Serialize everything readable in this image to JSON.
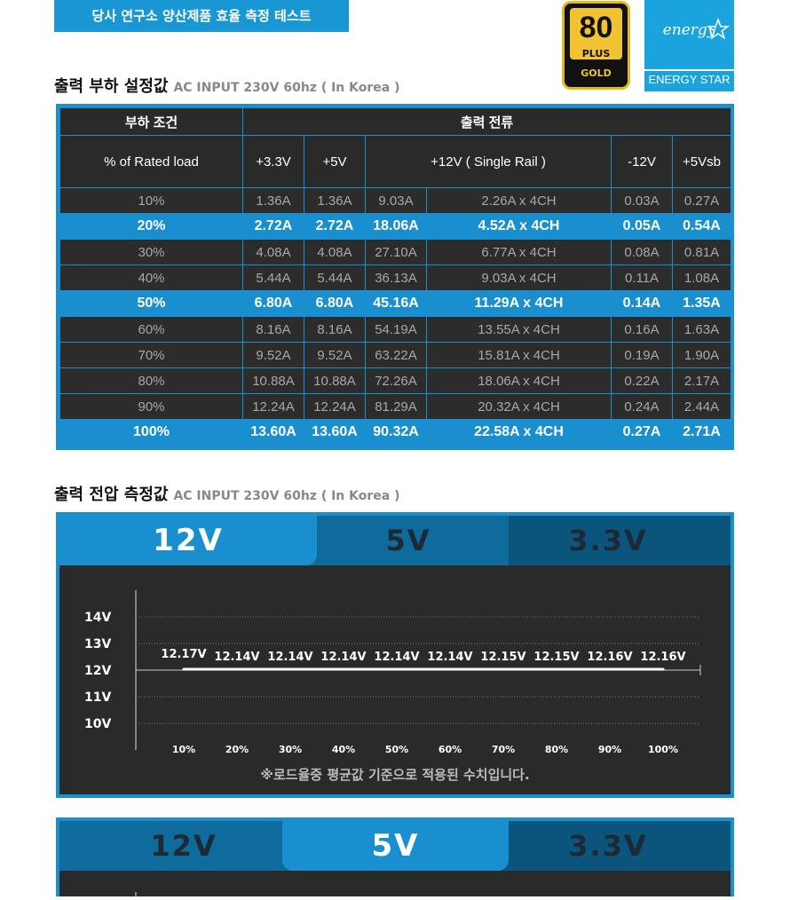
{
  "header": {
    "banner": "당사 연구소 양산제품 효율 측정 테스트",
    "logo_80plus": {
      "number": "80",
      "plus": "PLUS",
      "grade": "GOLD"
    },
    "logo_energy_star": {
      "script": "energy",
      "label": "ENERGY STAR"
    }
  },
  "load_section": {
    "title": "출력 부하 설정값",
    "subtitle": "AC INPUT 230V 60hz ( In Korea )",
    "group_left": "부하 조건",
    "group_right": "출력 전류",
    "columns": [
      "% of  Rated load",
      "+3.3V",
      "+5V",
      "+12V ( Single Rail )",
      "-12V",
      "+5Vsb"
    ],
    "rows": [
      {
        "load": "10%",
        "v33": "1.36A",
        "v5": "1.36A",
        "v12a": "9.03A",
        "v12b": "2.26A x 4CH",
        "vn12": "0.03A",
        "vsb": "0.27A",
        "highlight": false
      },
      {
        "load": "20%",
        "v33": "2.72A",
        "v5": "2.72A",
        "v12a": "18.06A",
        "v12b": "4.52A x 4CH",
        "vn12": "0.05A",
        "vsb": "0.54A",
        "highlight": true
      },
      {
        "load": "30%",
        "v33": "4.08A",
        "v5": "4.08A",
        "v12a": "27.10A",
        "v12b": "6.77A x 4CH",
        "vn12": "0.08A",
        "vsb": "0.81A",
        "highlight": false
      },
      {
        "load": "40%",
        "v33": "5.44A",
        "v5": "5.44A",
        "v12a": "36.13A",
        "v12b": "9.03A x 4CH",
        "vn12": "0.11A",
        "vsb": "1.08A",
        "highlight": false
      },
      {
        "load": "50%",
        "v33": "6.80A",
        "v5": "6.80A",
        "v12a": "45.16A",
        "v12b": "11.29A x 4CH",
        "vn12": "0.14A",
        "vsb": "1.35A",
        "highlight": true
      },
      {
        "load": "60%",
        "v33": "8.16A",
        "v5": "8.16A",
        "v12a": "54.19A",
        "v12b": "13.55A x 4CH",
        "vn12": "0.16A",
        "vsb": "1.63A",
        "highlight": false
      },
      {
        "load": "70%",
        "v33": "9.52A",
        "v5": "9.52A",
        "v12a": "63.22A",
        "v12b": "15.81A x 4CH",
        "vn12": "0.19A",
        "vsb": "1.90A",
        "highlight": false
      },
      {
        "load": "80%",
        "v33": "10.88A",
        "v5": "10.88A",
        "v12a": "72.26A",
        "v12b": "18.06A x 4CH",
        "vn12": "0.22A",
        "vsb": "2.17A",
        "highlight": false
      },
      {
        "load": "90%",
        "v33": "12.24A",
        "v5": "12.24A",
        "v12a": "81.29A",
        "v12b": "20.32A x 4CH",
        "vn12": "0.24A",
        "vsb": "2.44A",
        "highlight": false
      },
      {
        "load": "100%",
        "v33": "13.60A",
        "v5": "13.60A",
        "v12a": "90.32A",
        "v12b": "22.58A x 4CH",
        "vn12": "0.27A",
        "vsb": "2.71A",
        "highlight": true
      }
    ]
  },
  "voltage_section": {
    "title": "출력 전압 측정값",
    "subtitle": "AC INPUT 230V 60hz ( In Korea )",
    "tabs": [
      "12V",
      "5V",
      "3.3V"
    ],
    "caption": "※로드율중 평균값 기준으로 적용된 수치입니다."
  },
  "chart_data": [
    {
      "type": "line",
      "active_tab": "12V",
      "x": [
        "10%",
        "20%",
        "30%",
        "40%",
        "50%",
        "60%",
        "70%",
        "80%",
        "90%",
        "100%"
      ],
      "values": [
        12.17,
        12.14,
        12.14,
        12.14,
        12.14,
        12.14,
        12.15,
        12.15,
        12.16,
        12.16
      ],
      "data_labels": [
        "12.17V",
        "12.14V",
        "12.14V",
        "12.14V",
        "12.14V",
        "12.14V",
        "12.15V",
        "12.15V",
        "12.16V",
        "12.16V"
      ],
      "yticks": [
        "14V",
        "13V",
        "12V",
        "11V",
        "10V"
      ],
      "ylim": [
        10,
        14
      ],
      "grid": "dotted horizontal",
      "colors": {
        "line": "#ffffff",
        "glow": "#6ec6ff",
        "background": "#2a2a2a"
      }
    },
    {
      "type": "line",
      "active_tab": "5V",
      "partially_visible": true
    }
  ]
}
